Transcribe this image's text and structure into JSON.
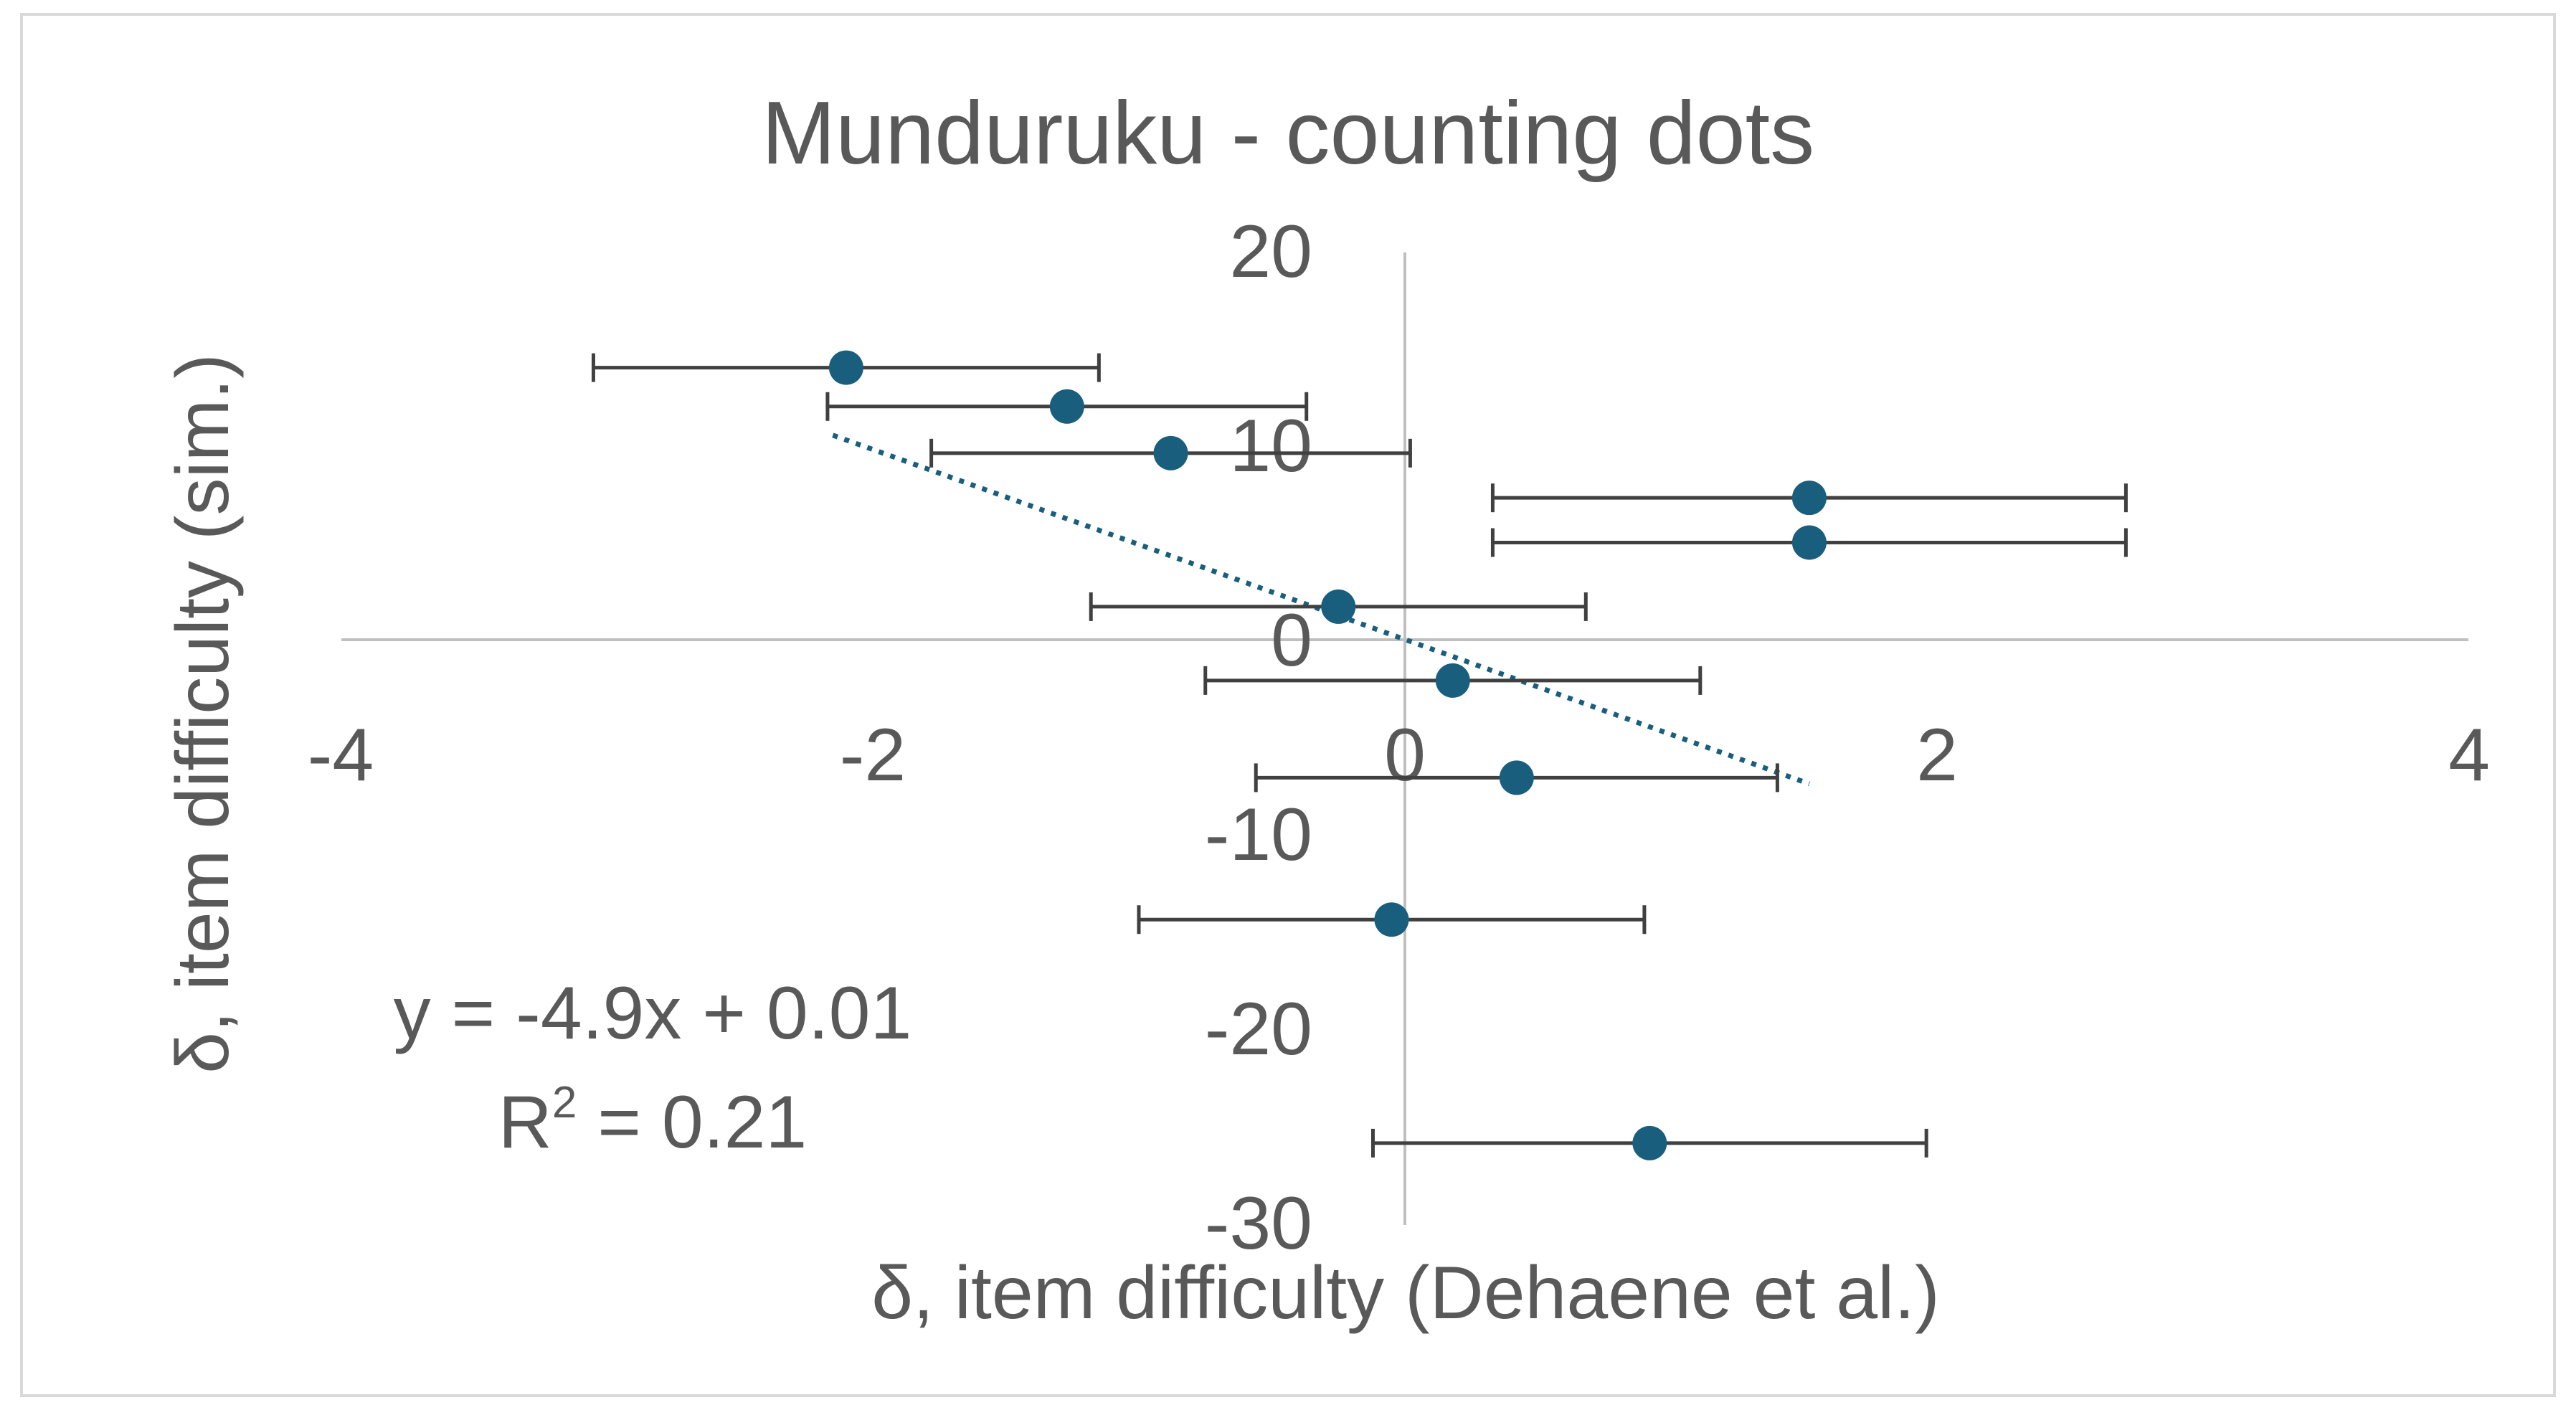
{
  "chart_data": {
    "type": "scatter",
    "title": "Munduruku - counting dots",
    "xlabel": "δ, item difficulty (Dehaene et al.)",
    "ylabel": "δ, item difficulty (sim.)",
    "xlim": [
      -4,
      4
    ],
    "ylim": [
      -30,
      20
    ],
    "x_ticks": [
      "-4",
      "-2",
      "0",
      "2",
      "4"
    ],
    "y_ticks": [
      "20",
      "10",
      "0",
      "-10",
      "-20",
      "-30"
    ],
    "grid": false,
    "legend": "none",
    "colors": {
      "points": "#1a5e7e",
      "errorbars": "#404040",
      "axes": "#bfbfbf",
      "trendline": "#1a5e7e"
    },
    "points": [
      {
        "x": -2.1,
        "y": 14.0,
        "x_err_low": 0.95,
        "x_err_high": 0.95
      },
      {
        "x": -1.27,
        "y": 12.0,
        "x_err_low": 0.9,
        "x_err_high": 0.9
      },
      {
        "x": -0.88,
        "y": 9.6,
        "x_err_low": 0.9,
        "x_err_high": 0.9
      },
      {
        "x": 1.52,
        "y": 7.3,
        "x_err_low": 1.19,
        "x_err_high": 1.19
      },
      {
        "x": 1.52,
        "y": 5.0,
        "x_err_low": 1.19,
        "x_err_high": 1.19
      },
      {
        "x": -0.25,
        "y": 1.7,
        "x_err_low": 0.93,
        "x_err_high": 0.93
      },
      {
        "x": 0.18,
        "y": -2.1,
        "x_err_low": 0.93,
        "x_err_high": 0.93
      },
      {
        "x": 0.42,
        "y": -7.1,
        "x_err_low": 0.98,
        "x_err_high": 0.98
      },
      {
        "x": -0.05,
        "y": -14.4,
        "x_err_low": 0.95,
        "x_err_high": 0.95
      },
      {
        "x": 0.92,
        "y": -25.9,
        "x_err_low": 1.04,
        "x_err_high": 1.04
      }
    ],
    "trendline": {
      "style": "dotted",
      "x_range": [
        -2.15,
        1.52
      ],
      "equation": "y = -4.9x + 0.01",
      "r_squared_label": "R",
      "r_squared_sup": "2",
      "r_squared_value": " = 0.21"
    }
  }
}
